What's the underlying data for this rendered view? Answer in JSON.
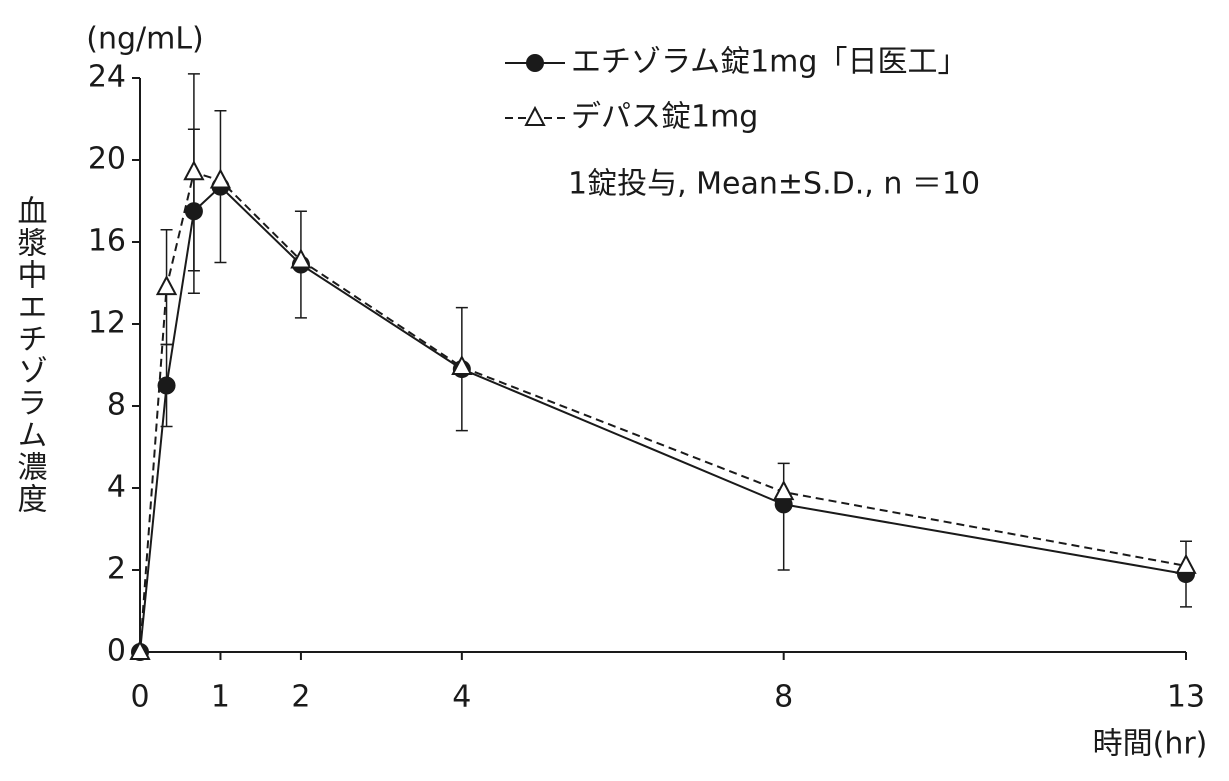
{
  "chart_data": {
    "type": "line",
    "y_unit": "(ng/mL)",
    "y_label": "血漿中エチゾラム濃度",
    "x_label": "時間(hr)",
    "annotation": "1錠投与, Mean±S.D., n ＝10",
    "x": [
      0,
      0.33,
      0.67,
      1,
      2,
      4,
      8,
      13
    ],
    "series": [
      {
        "name": "エチゾラム錠1mg「日医工」",
        "color": "#1a1a1a",
        "dash": "solid",
        "marker": "circle",
        "values": [
          0,
          9.0,
          17.5,
          18.7,
          14.9,
          9.8,
          3.6,
          1.9
        ],
        "errors": [
          null,
          2.0,
          4.0,
          3.7,
          2.6,
          3.0,
          1.6,
          0.8
        ]
      },
      {
        "name": "デパス錠1mg",
        "color": "#1a1a1a",
        "dash": "dashed",
        "marker": "triangle",
        "values": [
          0,
          13.8,
          19.4,
          19.0,
          15.1,
          9.9,
          3.9,
          2.1
        ],
        "errors": [
          null,
          2.8,
          4.8,
          null,
          null,
          null,
          null,
          null
        ]
      }
    ],
    "xlim": [
      0,
      13
    ],
    "xticks": [
      0,
      1,
      2,
      4,
      8,
      13
    ],
    "ylim": [
      0,
      24
    ],
    "yticks": [
      0,
      2,
      4,
      8,
      12,
      16,
      20,
      24
    ],
    "grid": false
  }
}
